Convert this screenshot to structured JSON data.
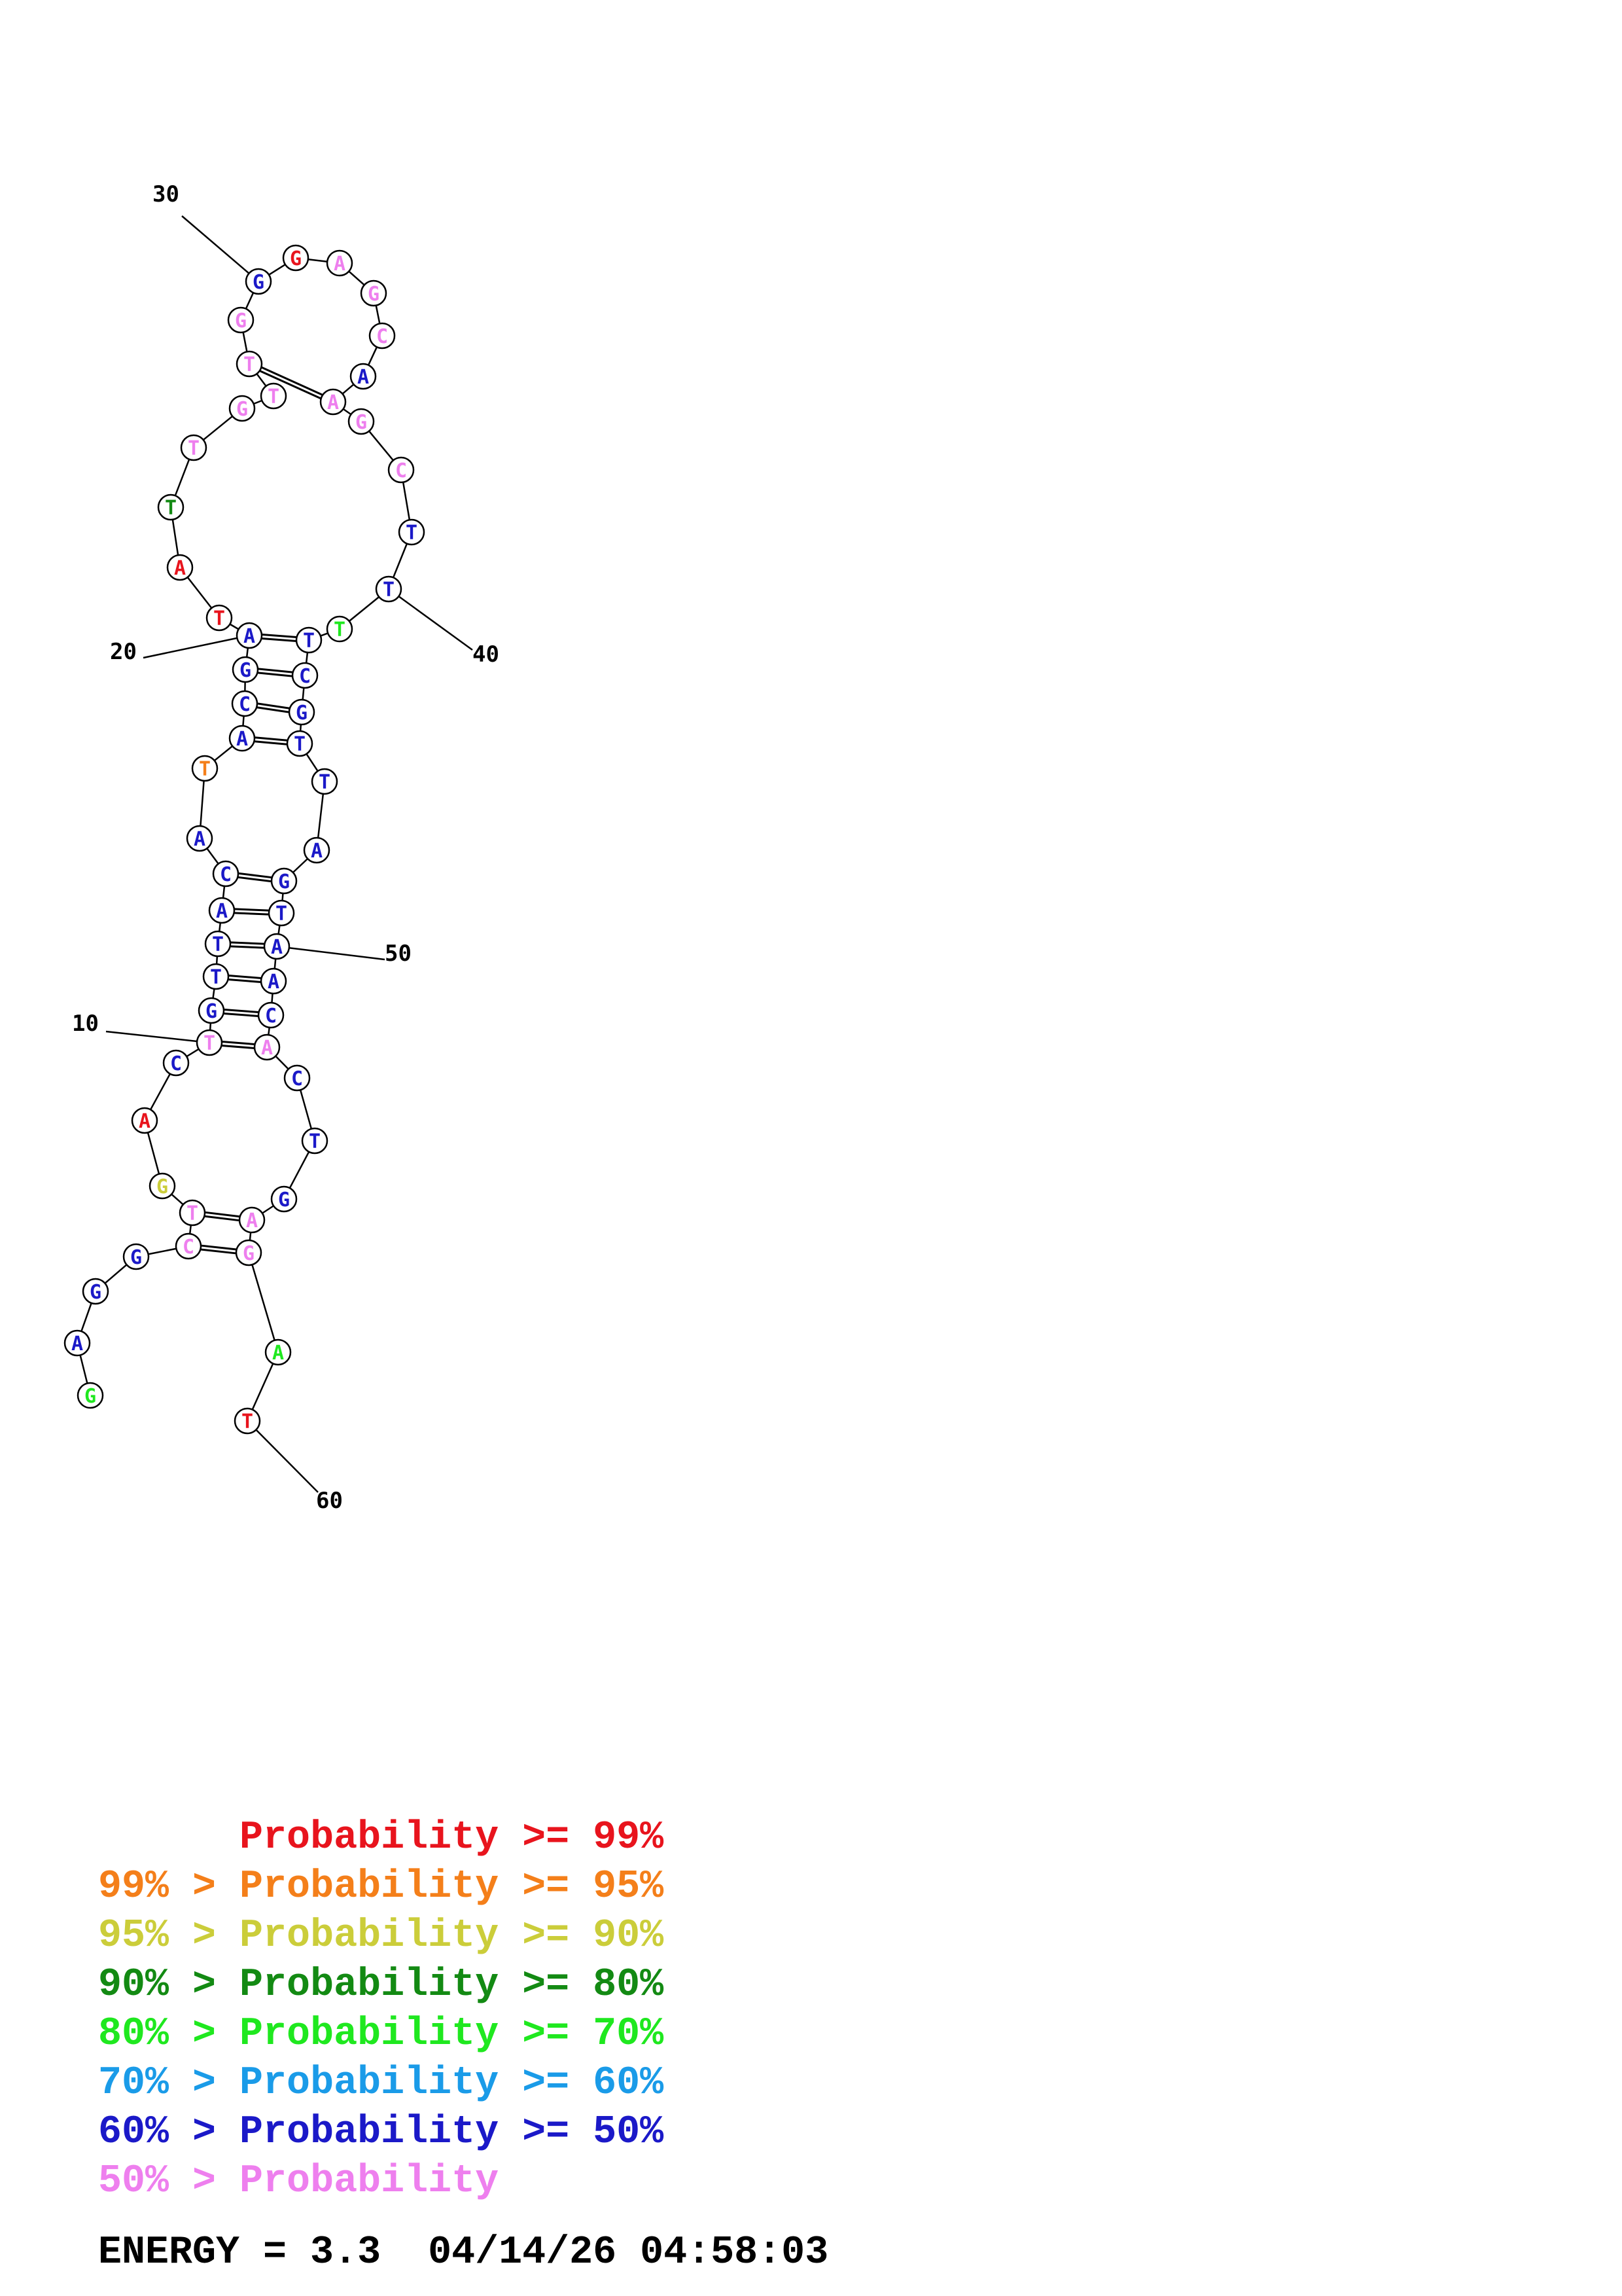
{
  "colors": {
    "red": "#e8141d",
    "orange": "#f47f1a",
    "yellow": "#cbcd3a",
    "darkgreen": "#138a13",
    "green": "#1fe81f",
    "cyan": "#1a9be8",
    "blue": "#1b19c8",
    "pink": "#ee7fee"
  },
  "structure": {
    "nucleotides": [
      {
        "index": 1,
        "base": "G",
        "color": "green"
      },
      {
        "index": 2,
        "base": "A",
        "color": "blue"
      },
      {
        "index": 3,
        "base": "G",
        "color": "blue"
      },
      {
        "index": 4,
        "base": "G",
        "color": "blue"
      },
      {
        "index": 5,
        "base": "C",
        "color": "pink"
      },
      {
        "index": 6,
        "base": "T",
        "color": "pink"
      },
      {
        "index": 7,
        "base": "G",
        "color": "yellow"
      },
      {
        "index": 8,
        "base": "A",
        "color": "red"
      },
      {
        "index": 9,
        "base": "C",
        "color": "blue"
      },
      {
        "index": 10,
        "base": "T",
        "color": "pink"
      },
      {
        "index": 11,
        "base": "G",
        "color": "blue"
      },
      {
        "index": 12,
        "base": "T",
        "color": "blue"
      },
      {
        "index": 13,
        "base": "T",
        "color": "blue"
      },
      {
        "index": 14,
        "base": "A",
        "color": "blue"
      },
      {
        "index": 15,
        "base": "C",
        "color": "blue"
      },
      {
        "index": 16,
        "base": "A",
        "color": "blue"
      },
      {
        "index": 17,
        "base": "T",
        "color": "orange"
      },
      {
        "index": 18,
        "base": "A",
        "color": "blue"
      },
      {
        "index": 19,
        "base": "C",
        "color": "blue"
      },
      {
        "index": 20,
        "base": "G",
        "color": "blue"
      },
      {
        "index": 21,
        "base": "A",
        "color": "blue"
      },
      {
        "index": 22,
        "base": "T",
        "color": "red"
      },
      {
        "index": 23,
        "base": "A",
        "color": "red"
      },
      {
        "index": 24,
        "base": "T",
        "color": "darkgreen"
      },
      {
        "index": 25,
        "base": "T",
        "color": "pink"
      },
      {
        "index": 26,
        "base": "G",
        "color": "pink"
      },
      {
        "index": 27,
        "base": "T",
        "color": "pink"
      },
      {
        "index": 28,
        "base": "T",
        "color": "pink"
      },
      {
        "index": 29,
        "base": "G",
        "color": "pink"
      },
      {
        "index": 30,
        "base": "G",
        "color": "blue"
      },
      {
        "index": 31,
        "base": "G",
        "color": "red"
      },
      {
        "index": 32,
        "base": "A",
        "color": "pink"
      },
      {
        "index": 33,
        "base": "G",
        "color": "pink"
      },
      {
        "index": 34,
        "base": "C",
        "color": "pink"
      },
      {
        "index": 35,
        "base": "A",
        "color": "blue"
      },
      {
        "index": 36,
        "base": "A",
        "color": "pink"
      },
      {
        "index": 37,
        "base": "G",
        "color": "pink"
      },
      {
        "index": 38,
        "base": "C",
        "color": "pink"
      },
      {
        "index": 39,
        "base": "T",
        "color": "blue"
      },
      {
        "index": 40,
        "base": "T",
        "color": "blue"
      },
      {
        "index": 41,
        "base": "T",
        "color": "green"
      },
      {
        "index": 42,
        "base": "T",
        "color": "blue"
      },
      {
        "index": 43,
        "base": "C",
        "color": "blue"
      },
      {
        "index": 44,
        "base": "G",
        "color": "blue"
      },
      {
        "index": 45,
        "base": "T",
        "color": "blue"
      },
      {
        "index": 46,
        "base": "T",
        "color": "blue"
      },
      {
        "index": 47,
        "base": "A",
        "color": "blue"
      },
      {
        "index": 48,
        "base": "G",
        "color": "blue"
      },
      {
        "index": 49,
        "base": "T",
        "color": "blue"
      },
      {
        "index": 50,
        "base": "A",
        "color": "blue"
      },
      {
        "index": 51,
        "base": "A",
        "color": "blue"
      },
      {
        "index": 52,
        "base": "C",
        "color": "blue"
      },
      {
        "index": 53,
        "base": "A",
        "color": "pink"
      },
      {
        "index": 54,
        "base": "C",
        "color": "blue"
      },
      {
        "index": 55,
        "base": "T",
        "color": "blue"
      },
      {
        "index": 56,
        "base": "G",
        "color": "blue"
      },
      {
        "index": 57,
        "base": "A",
        "color": "pink"
      },
      {
        "index": 58,
        "base": "G",
        "color": "pink"
      },
      {
        "index": 59,
        "base": "A",
        "color": "green"
      },
      {
        "index": 60,
        "base": "T",
        "color": "red"
      }
    ],
    "pairs": [
      [
        5,
        58
      ],
      [
        6,
        57
      ],
      [
        10,
        53
      ],
      [
        11,
        52
      ],
      [
        12,
        51
      ],
      [
        13,
        50
      ],
      [
        14,
        49
      ],
      [
        15,
        48
      ],
      [
        18,
        45
      ],
      [
        19,
        44
      ],
      [
        20,
        43
      ],
      [
        21,
        42
      ],
      [
        28,
        36
      ]
    ],
    "index_labels": [
      "10",
      "20",
      "30",
      "40",
      "50",
      "60"
    ]
  },
  "legend": [
    {
      "prefix": "",
      "text": "Probability >= 99%",
      "color": "red"
    },
    {
      "prefix": "99% > ",
      "text": "Probability >= 95%",
      "color": "orange"
    },
    {
      "prefix": "95% > ",
      "text": "Probability >= 90%",
      "color": "yellow"
    },
    {
      "prefix": "90% > ",
      "text": "Probability >= 80%",
      "color": "darkgreen"
    },
    {
      "prefix": "80% > ",
      "text": "Probability >= 70%",
      "color": "green"
    },
    {
      "prefix": "70% > ",
      "text": "Probability >= 60%",
      "color": "cyan"
    },
    {
      "prefix": "60% > ",
      "text": "Probability >= 50%",
      "color": "blue"
    },
    {
      "prefix": "50% > ",
      "text": "Probability",
      "color": "pink"
    }
  ],
  "energy": {
    "label": "ENERGY = 3.3",
    "timestamp": "04/14/26 04:58:03"
  }
}
